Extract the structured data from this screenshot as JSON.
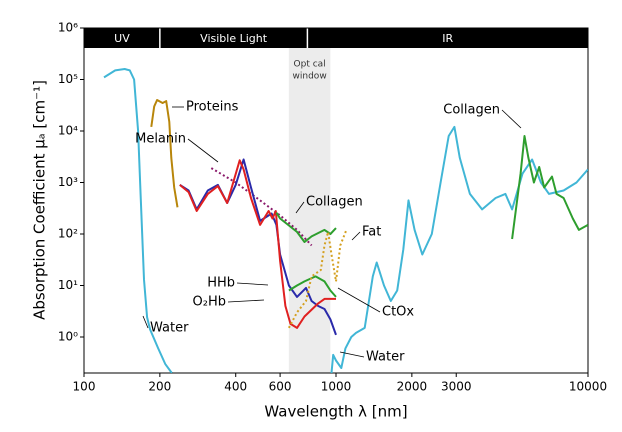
{
  "chart_data": {
    "type": "line",
    "x_label": "Wavelength λ [nm]",
    "y_label": "Absorption Coefficient μₐ [cm⁻¹]",
    "log_x": true,
    "log_y": true,
    "xlim": [
      100,
      10000
    ],
    "ylim": [
      0.2,
      1000000
    ],
    "xticks": [
      100,
      200,
      400,
      600,
      1000,
      2000,
      3000,
      10000
    ],
    "yticks": [
      {
        "value": 1,
        "label": "10⁰"
      },
      {
        "value": 10,
        "label": "10¹"
      },
      {
        "value": 100,
        "label": "10²"
      },
      {
        "value": 1000,
        "label": "10³"
      },
      {
        "value": 10000,
        "label": "10⁴"
      },
      {
        "value": 100000,
        "label": "10⁵"
      },
      {
        "value": 1000000,
        "label": "10⁶"
      }
    ],
    "bands": [
      {
        "label": "UV",
        "range": [
          100,
          200
        ]
      },
      {
        "label": "Visible Light",
        "range": [
          200,
          770
        ]
      },
      {
        "label": "IR",
        "range": [
          770,
          10000
        ]
      }
    ],
    "window": {
      "lines": [
        "Opt cal",
        "window"
      ],
      "range": [
        650,
        950
      ]
    },
    "series": [
      {
        "name": "Water",
        "color": "#41b6d6",
        "dashed": false,
        "x": [
          120,
          133,
          145,
          152,
          158,
          164,
          168,
          173,
          178,
          183,
          197,
          210,
          223,
          null,
          960,
          975,
          1000,
          1050,
          1090,
          1150,
          1200,
          1300,
          1400,
          1450,
          1550,
          1650,
          1750,
          1850,
          1940,
          2050,
          2200,
          2400,
          2600,
          2800,
          2950,
          3100,
          3400,
          3800,
          4300,
          4700,
          5000,
          5500,
          6000,
          6500,
          7000,
          8000,
          9000,
          10000
        ],
        "values": [
          110000,
          150000,
          160000,
          150000,
          100000,
          10000,
          470,
          13,
          2.4,
          1.4,
          0.6,
          0.3,
          0.2,
          null,
          0.2,
          0.45,
          0.35,
          0.25,
          0.6,
          1,
          1.2,
          1.5,
          15,
          28,
          10,
          5,
          8,
          50,
          450,
          120,
          40,
          100,
          1000,
          8000,
          12000,
          3000,
          600,
          300,
          500,
          600,
          300,
          1500,
          2800,
          1000,
          600,
          700,
          1000,
          1800
        ]
      },
      {
        "name": "Proteins",
        "color": "#b8860b",
        "dashed": false,
        "x": [
          185,
          190,
          195,
          205,
          212,
          218,
          222,
          228,
          235
        ],
        "values": [
          12000,
          30000,
          40000,
          35000,
          38000,
          15000,
          3000,
          800,
          330
        ]
      },
      {
        "name": "Melanin",
        "color": "#8b1a6b",
        "dashed": true,
        "x": [
          320,
          400,
          500,
          600,
          700,
          800
        ],
        "values": [
          1900,
          1000,
          450,
          230,
          120,
          60
        ]
      },
      {
        "name": "HHb",
        "color": "#2a2aaa",
        "dashed": false,
        "x": [
          240,
          260,
          280,
          310,
          340,
          370,
          400,
          430,
          460,
          500,
          555,
          580,
          600,
          650,
          700,
          760,
          800,
          850,
          900,
          950,
          1000
        ],
        "values": [
          900,
          700,
          300,
          700,
          900,
          400,
          900,
          2800,
          800,
          180,
          250,
          150,
          40,
          10,
          6,
          9,
          5,
          4,
          3.5,
          2.2,
          1.1
        ]
      },
      {
        "name": "O₂Hb",
        "color": "#e02020",
        "dashed": false,
        "x": [
          240,
          260,
          280,
          310,
          340,
          370,
          415,
          430,
          460,
          500,
          540,
          560,
          577,
          600,
          630,
          660,
          700,
          750,
          850,
          900,
          1000
        ],
        "values": [
          900,
          650,
          280,
          600,
          850,
          400,
          2700,
          1800,
          500,
          150,
          280,
          200,
          280,
          30,
          4,
          1.8,
          1.5,
          2.5,
          4.5,
          5.5,
          5.5
        ]
      },
      {
        "name": "CtOx",
        "color": "#2ca02c",
        "dashed": false,
        "x": [
          650,
          700,
          750,
          830,
          900,
          950,
          1000
        ],
        "values": [
          8,
          10,
          12,
          15,
          12,
          8,
          6
        ]
      },
      {
        "name": "Collagen",
        "color": "#2e9e2e",
        "dashed": false,
        "x": [
          580,
          600,
          700,
          750,
          800,
          900,
          950,
          1000,
          null,
          5000,
          5400,
          5600,
          5800,
          6100,
          6400,
          6700,
          7200,
          7500,
          8000,
          8700,
          9200,
          10000
        ],
        "values": [
          260,
          200,
          110,
          70,
          90,
          120,
          100,
          130,
          null,
          80,
          1500,
          8000,
          3000,
          1000,
          2000,
          800,
          1300,
          600,
          500,
          200,
          120,
          150
        ]
      },
      {
        "name": "Fat",
        "color": "#d4a020",
        "dashed": true,
        "x": [
          650,
          700,
          760,
          800,
          870,
          900,
          930,
          960,
          1000,
          1040,
          1100
        ],
        "values": [
          1.5,
          3,
          5,
          15,
          20,
          60,
          110,
          40,
          12,
          60,
          120
        ]
      }
    ]
  }
}
